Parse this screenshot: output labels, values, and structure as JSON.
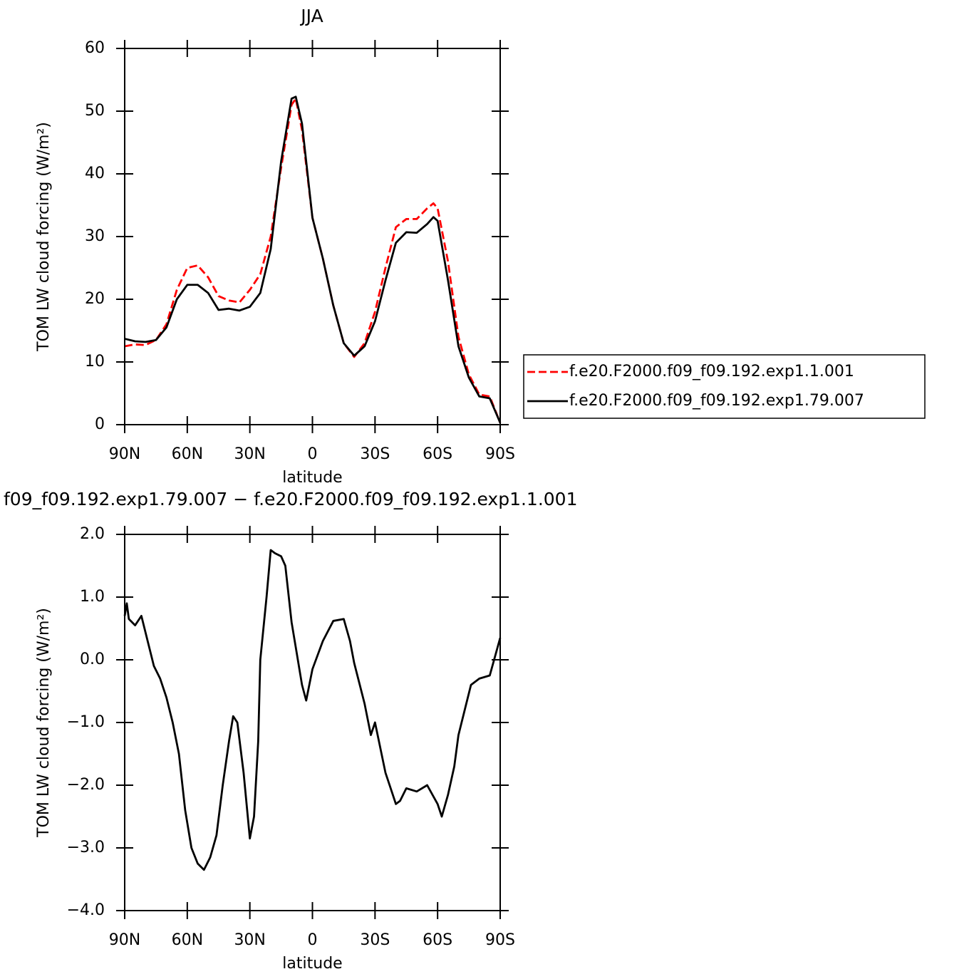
{
  "chart_data": [
    {
      "type": "line",
      "title": "JJA",
      "xlabel": "latitude",
      "ylabel": "TOM LW cloud forcing (W/m²)",
      "x": [
        90,
        85,
        80,
        75,
        70,
        65,
        60,
        55,
        50,
        45,
        40,
        35,
        30,
        25,
        20,
        15,
        10,
        8,
        5,
        0,
        -5,
        -10,
        -15,
        -20,
        -25,
        -30,
        -35,
        -40,
        -45,
        -50,
        -55,
        -58,
        -60,
        -65,
        -70,
        -75,
        -80,
        -85,
        -90
      ],
      "series": [
        {
          "name": "f.e20.F2000.f09_f09.192.exp1.1.001",
          "color": "#ff0000",
          "dashed": true,
          "values": [
            12.5,
            12.8,
            12.7,
            13.5,
            16,
            21.5,
            25,
            25.4,
            23.5,
            20.5,
            19.8,
            19.5,
            21.5,
            24,
            30,
            41,
            51,
            52,
            47,
            33,
            26.5,
            19,
            13,
            10.8,
            13,
            18,
            25,
            31.5,
            32.8,
            32.8,
            34.5,
            35.3,
            34.5,
            26,
            14,
            8,
            4.8,
            4.5,
            0.3
          ]
        },
        {
          "name": "f.e20.F2000.f09_f09.192.exp1.79.007",
          "color": "#000000",
          "dashed": false,
          "values": [
            13.7,
            13.3,
            13.2,
            13.5,
            15.5,
            20,
            22.3,
            22.3,
            21,
            18.3,
            18.5,
            18.2,
            18.8,
            21,
            28,
            42,
            52,
            52.3,
            48,
            33,
            26.5,
            19,
            13,
            11,
            12.5,
            16.5,
            23,
            29,
            30.7,
            30.6,
            32,
            33.1,
            32.5,
            23,
            12.5,
            7.5,
            4.5,
            4.2,
            0.3
          ]
        }
      ],
      "xlim": [
        90,
        -90
      ],
      "xticks": [
        {
          "value": 90,
          "label": "90N"
        },
        {
          "value": 60,
          "label": "60N"
        },
        {
          "value": 30,
          "label": "30N"
        },
        0,
        {
          "value": -30,
          "label": "30S"
        },
        {
          "value": -60,
          "label": "60S"
        },
        {
          "value": -90,
          "label": "90S"
        }
      ],
      "ylim": [
        0,
        60
      ],
      "yticks": [
        0,
        10,
        20,
        30,
        40,
        50,
        60
      ],
      "legend": "right"
    },
    {
      "type": "line",
      "title": "f09_f09.192.exp1.79.007 − f.e20.F2000.f09_f09.192.exp1.1.001",
      "xlabel": "latitude",
      "ylabel": "TOM LW cloud forcing (W/m²)",
      "x": [
        90,
        89,
        88,
        85,
        82,
        79,
        76,
        73,
        70,
        67,
        64,
        61,
        58,
        55,
        52,
        49,
        46,
        43,
        40,
        38,
        36,
        33,
        30,
        28,
        26,
        25,
        22,
        20,
        18,
        15,
        13,
        10,
        8,
        5,
        3,
        0,
        -5,
        -10,
        -15,
        -18,
        -20,
        -25,
        -28,
        -30,
        -35,
        -38,
        -40,
        -42,
        -45,
        -50,
        -55,
        -60,
        -62,
        -65,
        -68,
        -70,
        -73,
        -76,
        -80,
        -85,
        -90
      ],
      "values": [
        0.7,
        0.9,
        0.65,
        0.55,
        0.7,
        0.3,
        -0.1,
        -0.3,
        -0.6,
        -1.0,
        -1.5,
        -2.4,
        -3.0,
        -3.25,
        -3.35,
        -3.15,
        -2.8,
        -2.0,
        -1.3,
        -0.9,
        -1.0,
        -1.8,
        -2.85,
        -2.5,
        -1.3,
        0.0,
        1.0,
        1.75,
        1.7,
        1.65,
        1.5,
        0.6,
        0.2,
        -0.4,
        -0.65,
        -0.15,
        0.3,
        0.62,
        0.65,
        0.3,
        -0.05,
        -0.7,
        -1.2,
        -1.0,
        -1.8,
        -2.1,
        -2.3,
        -2.25,
        -2.05,
        -2.1,
        -2.0,
        -2.3,
        -2.5,
        -2.15,
        -1.7,
        -1.2,
        -0.8,
        -0.4,
        -0.3,
        -0.25,
        0.35
      ],
      "color": "#000000",
      "xlim": [
        90,
        -90
      ],
      "xticks": [
        {
          "value": 90,
          "label": "90N"
        },
        {
          "value": 60,
          "label": "60N"
        },
        {
          "value": 30,
          "label": "30N"
        },
        0,
        {
          "value": -30,
          "label": "30S"
        },
        {
          "value": -60,
          "label": "60S"
        },
        {
          "value": -90,
          "label": "90S"
        }
      ],
      "ylim": [
        -4,
        2
      ],
      "yticks": [
        {
          "value": -4,
          "label": "−4.0"
        },
        {
          "value": -3,
          "label": "−3.0"
        },
        {
          "value": -2,
          "label": "−2.0"
        },
        {
          "value": -1,
          "label": "−1.0"
        },
        {
          "value": 0,
          "label": "0.0"
        },
        {
          "value": 1,
          "label": "1.0"
        },
        {
          "value": 2,
          "label": "2.0"
        }
      ]
    }
  ]
}
